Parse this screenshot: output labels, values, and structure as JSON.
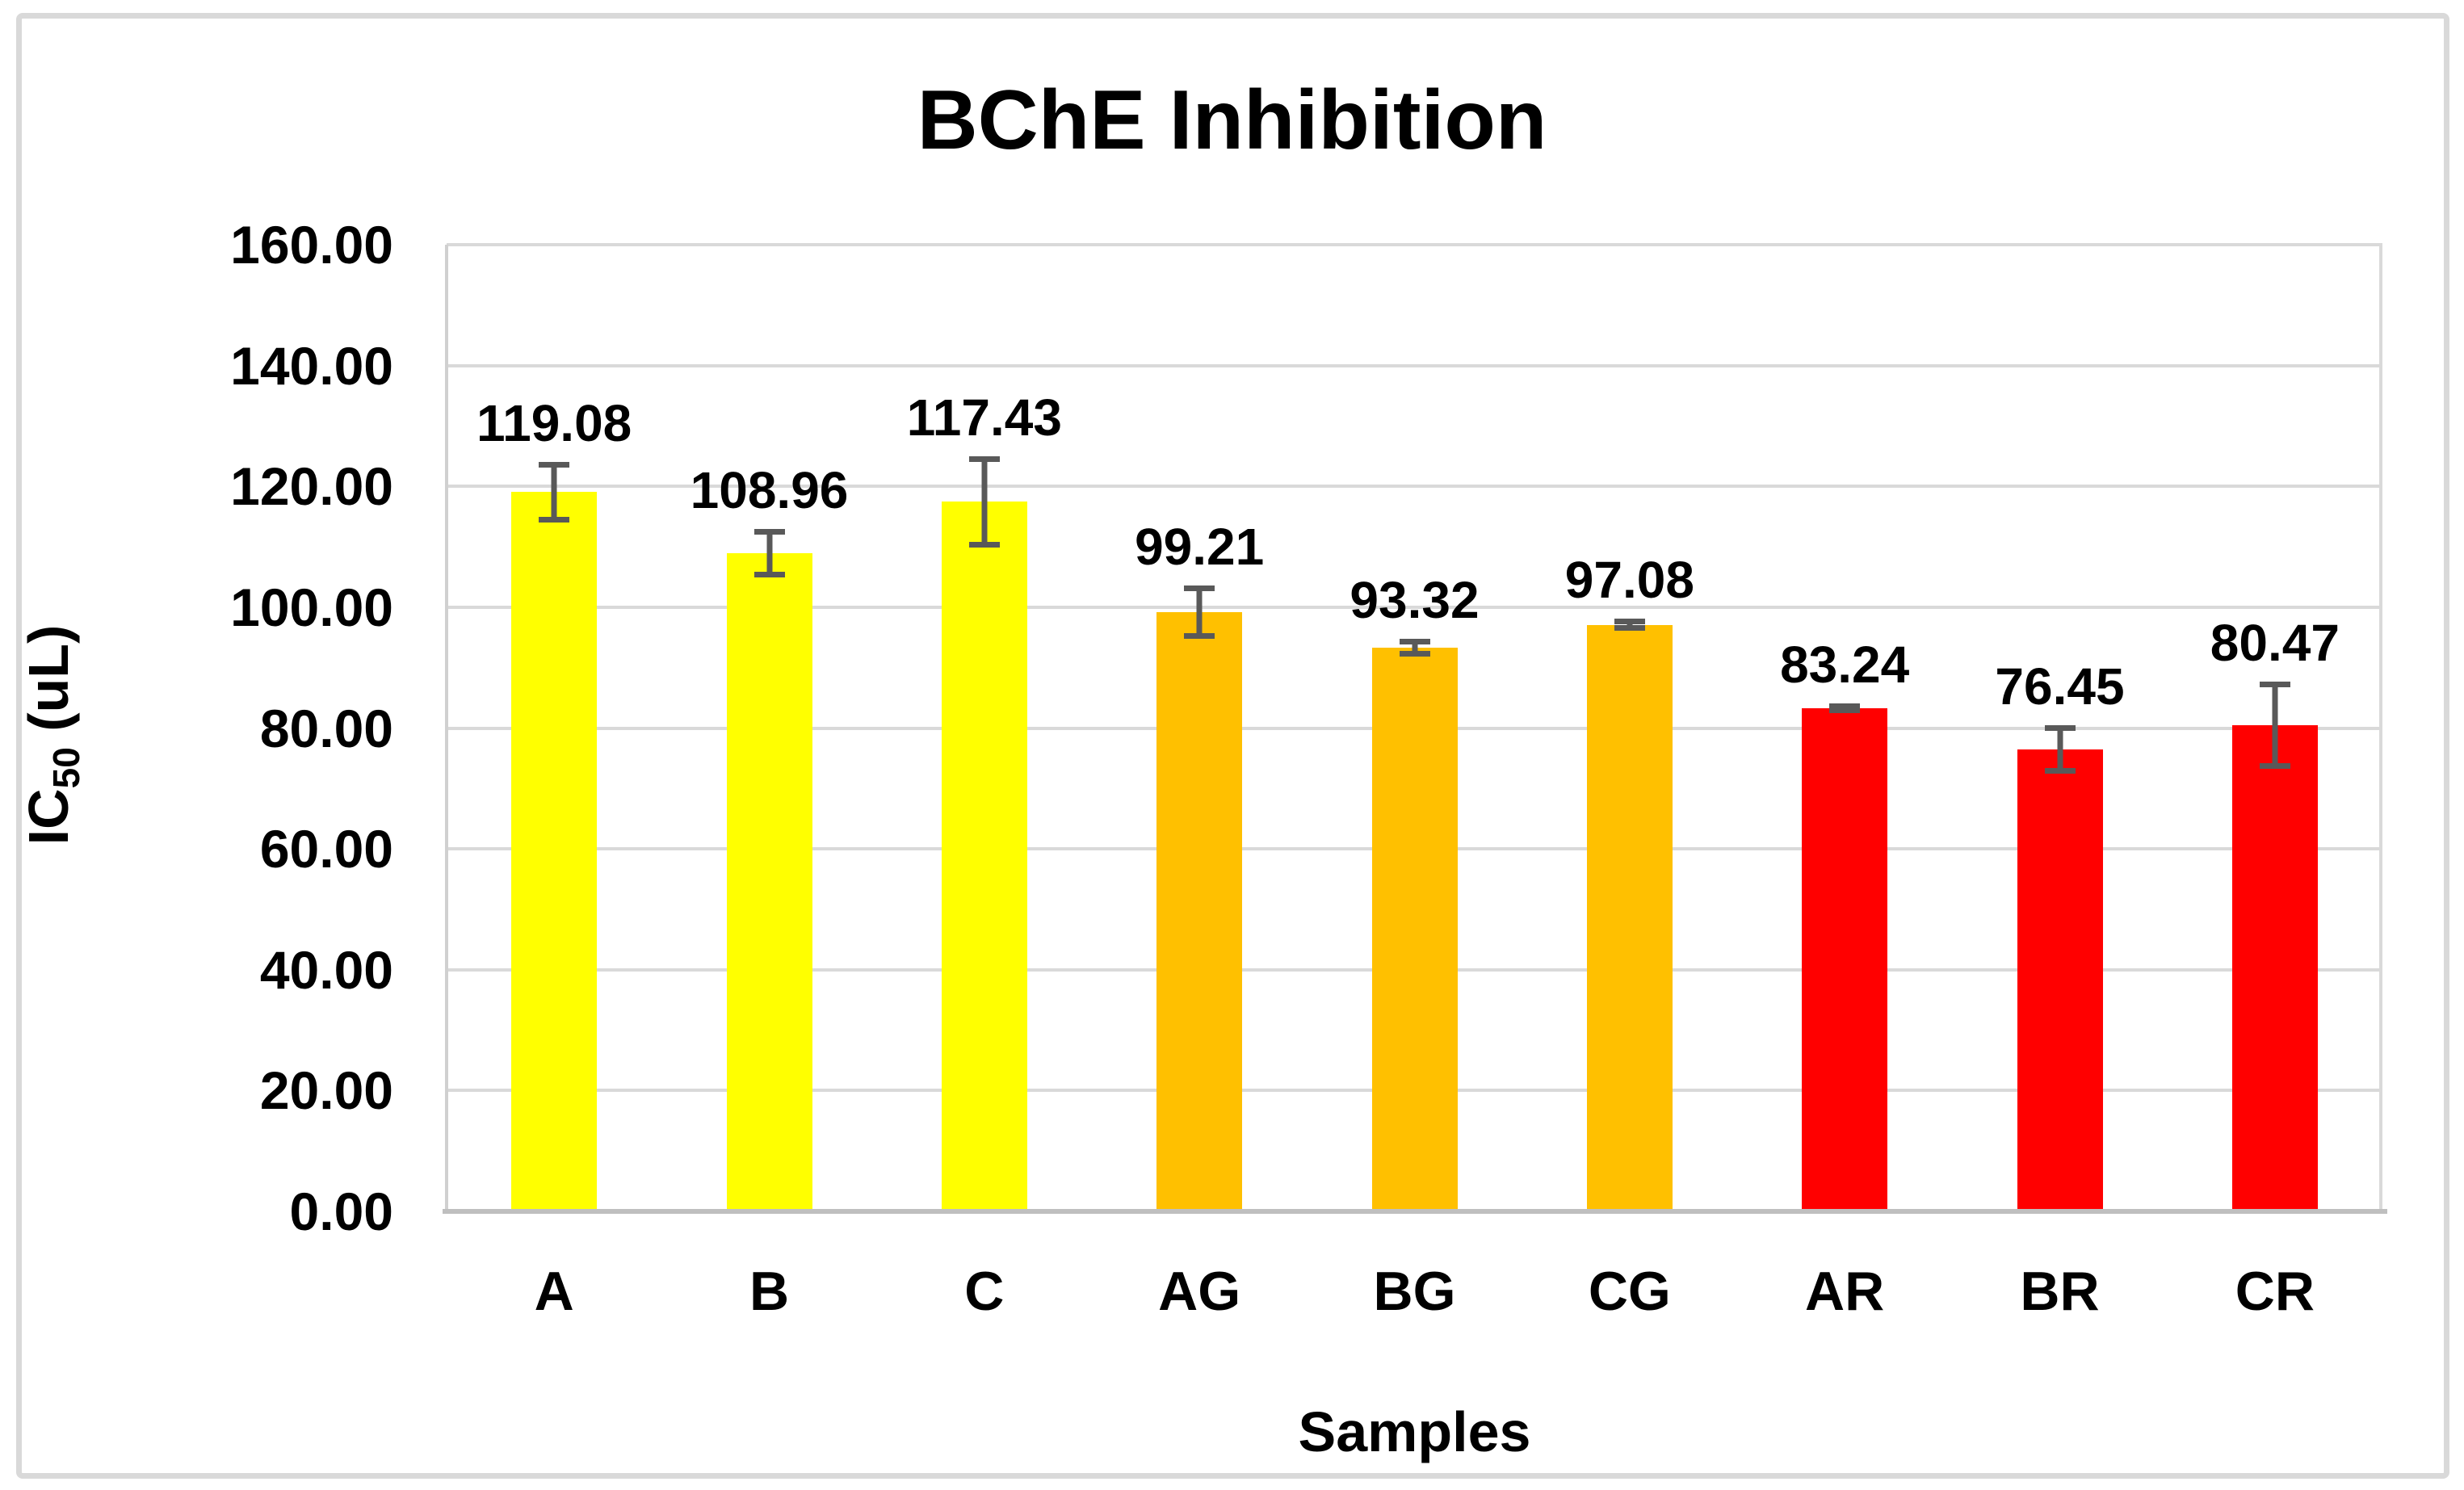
{
  "chart_data": {
    "type": "bar",
    "title": "BChE Inhibition",
    "xlabel": "Samples",
    "ylabel": "IC50 (uL)",
    "ylabel_parts": {
      "prefix": "IC",
      "sub": "50",
      "suffix": " (uL)"
    },
    "categories": [
      "A",
      "B",
      "C",
      "AG",
      "BG",
      "CG",
      "AR",
      "BR",
      "CR"
    ],
    "values": [
      119.08,
      108.96,
      117.43,
      99.21,
      93.32,
      97.08,
      83.24,
      76.45,
      80.47
    ],
    "data_labels": [
      "119.08",
      "108.96",
      "117.43",
      "99.21",
      "93.32",
      "97.08",
      "83.24",
      "76.45",
      "80.47"
    ],
    "error_bars": [
      5.0,
      4.0,
      7.5,
      4.4,
      1.5,
      1.0,
      0.8,
      4.0,
      7.2
    ],
    "bar_colors": [
      "#FFFF00",
      "#FFFF00",
      "#FFFF00",
      "#FFC000",
      "#FFC000",
      "#FFC000",
      "#FF0000",
      "#FF0000",
      "#FF0000"
    ],
    "color_groups": {
      "yellow_samples": [
        "A",
        "B",
        "C"
      ],
      "orange_samples": [
        "AG",
        "BG",
        "CG"
      ],
      "red_samples": [
        "AR",
        "BR",
        "CR"
      ]
    },
    "ylim": [
      0,
      160
    ],
    "ytick_step": 20,
    "ytick_labels": [
      "0.00",
      "20.00",
      "40.00",
      "60.00",
      "80.00",
      "100.00",
      "120.00",
      "140.00",
      "160.00"
    ],
    "grid": true,
    "legend": "none",
    "styles": {
      "yellow": "#FFFF00",
      "orange": "#FFC000",
      "red": "#FF0000",
      "error_bar_color": "#595959",
      "gridline_color": "#D9D9D9",
      "axis_color": "#BFBFBF",
      "frame_border_color": "#D9D9D9",
      "text_color": "#000000",
      "background": "#FFFFFF"
    }
  }
}
